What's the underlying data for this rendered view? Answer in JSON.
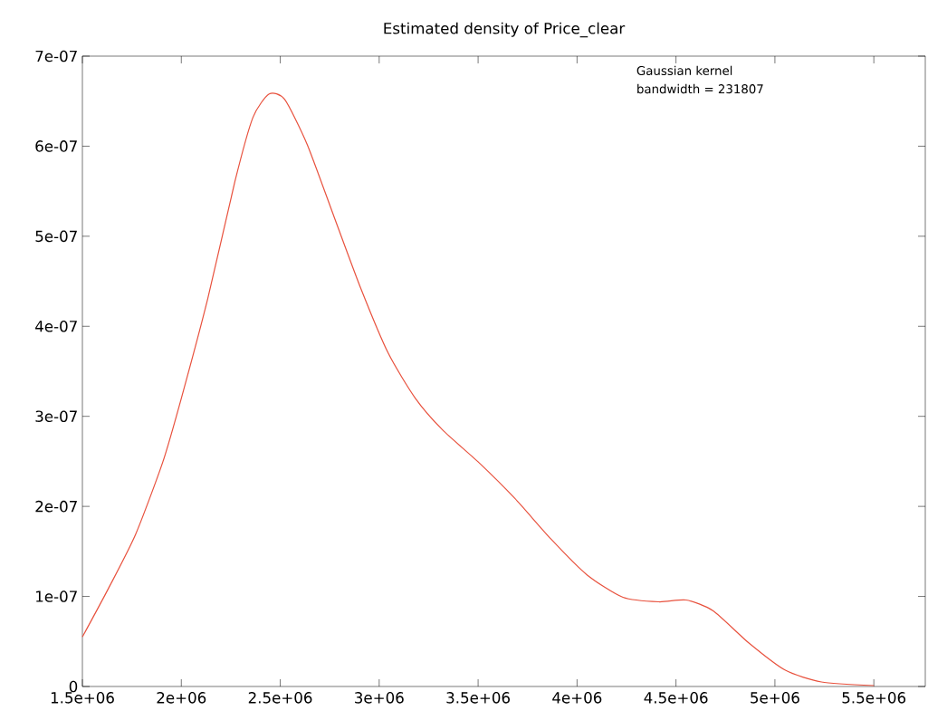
{
  "chart_data": {
    "type": "line",
    "title": "Estimated density of Price_clear",
    "annotations": [
      "Gaussian kernel",
      "bandwidth = 231807"
    ],
    "series": [
      {
        "color": "#e8513d",
        "x": [
          1500000,
          1632000,
          1769000,
          1906000,
          2000000,
          2134000,
          2271000,
          2362000,
          2444000,
          2522000,
          2636000,
          2773000,
          2909000,
          3046000,
          3183000,
          3320000,
          3502000,
          3685000,
          3867000,
          4050000,
          4232000,
          4414000,
          4551000,
          4688000,
          4870000,
          5053000,
          5235000,
          5500000
        ],
        "values": [
          5.5e-08,
          1.09e-07,
          1.69e-07,
          2.49e-07,
          3.2e-07,
          4.31e-07,
          5.61e-07,
          6.32e-07,
          6.58e-07,
          6.52e-07,
          6.02e-07,
          5.21e-07,
          4.41e-07,
          3.7e-07,
          3.2e-07,
          2.85e-07,
          2.49e-07,
          2.09e-07,
          1.64e-07,
          1.24e-07,
          9.9e-08,
          9.4e-08,
          9.6e-08,
          8.4e-08,
          4.8e-08,
          1.8e-08,
          5e-09,
          1e-09
        ]
      }
    ],
    "xlim": [
      1500000,
      5760000
    ],
    "ylim": [
      0,
      7e-07
    ],
    "xticks": [
      {
        "value": 1500000,
        "label": "1.5e+06"
      },
      {
        "value": 2000000,
        "label": "2e+06"
      },
      {
        "value": 2500000,
        "label": "2.5e+06"
      },
      {
        "value": 3000000,
        "label": "3e+06"
      },
      {
        "value": 3500000,
        "label": "3.5e+06"
      },
      {
        "value": 4000000,
        "label": "4e+06"
      },
      {
        "value": 4500000,
        "label": "4.5e+06"
      },
      {
        "value": 5000000,
        "label": "5e+06"
      },
      {
        "value": 5500000,
        "label": "5.5e+06"
      }
    ],
    "yticks": [
      0,
      {
        "value": 1e-07,
        "label": "1e-07"
      },
      {
        "value": 2e-07,
        "label": "2e-07"
      },
      {
        "value": 3e-07,
        "label": "3e-07"
      },
      {
        "value": 4e-07,
        "label": "4e-07"
      },
      {
        "value": 5e-07,
        "label": "5e-07"
      },
      {
        "value": 6e-07,
        "label": "6e-07"
      },
      {
        "value": 7e-07,
        "label": "7e-07"
      }
    ],
    "grid": false,
    "marker": "none",
    "line_style": "solid"
  }
}
